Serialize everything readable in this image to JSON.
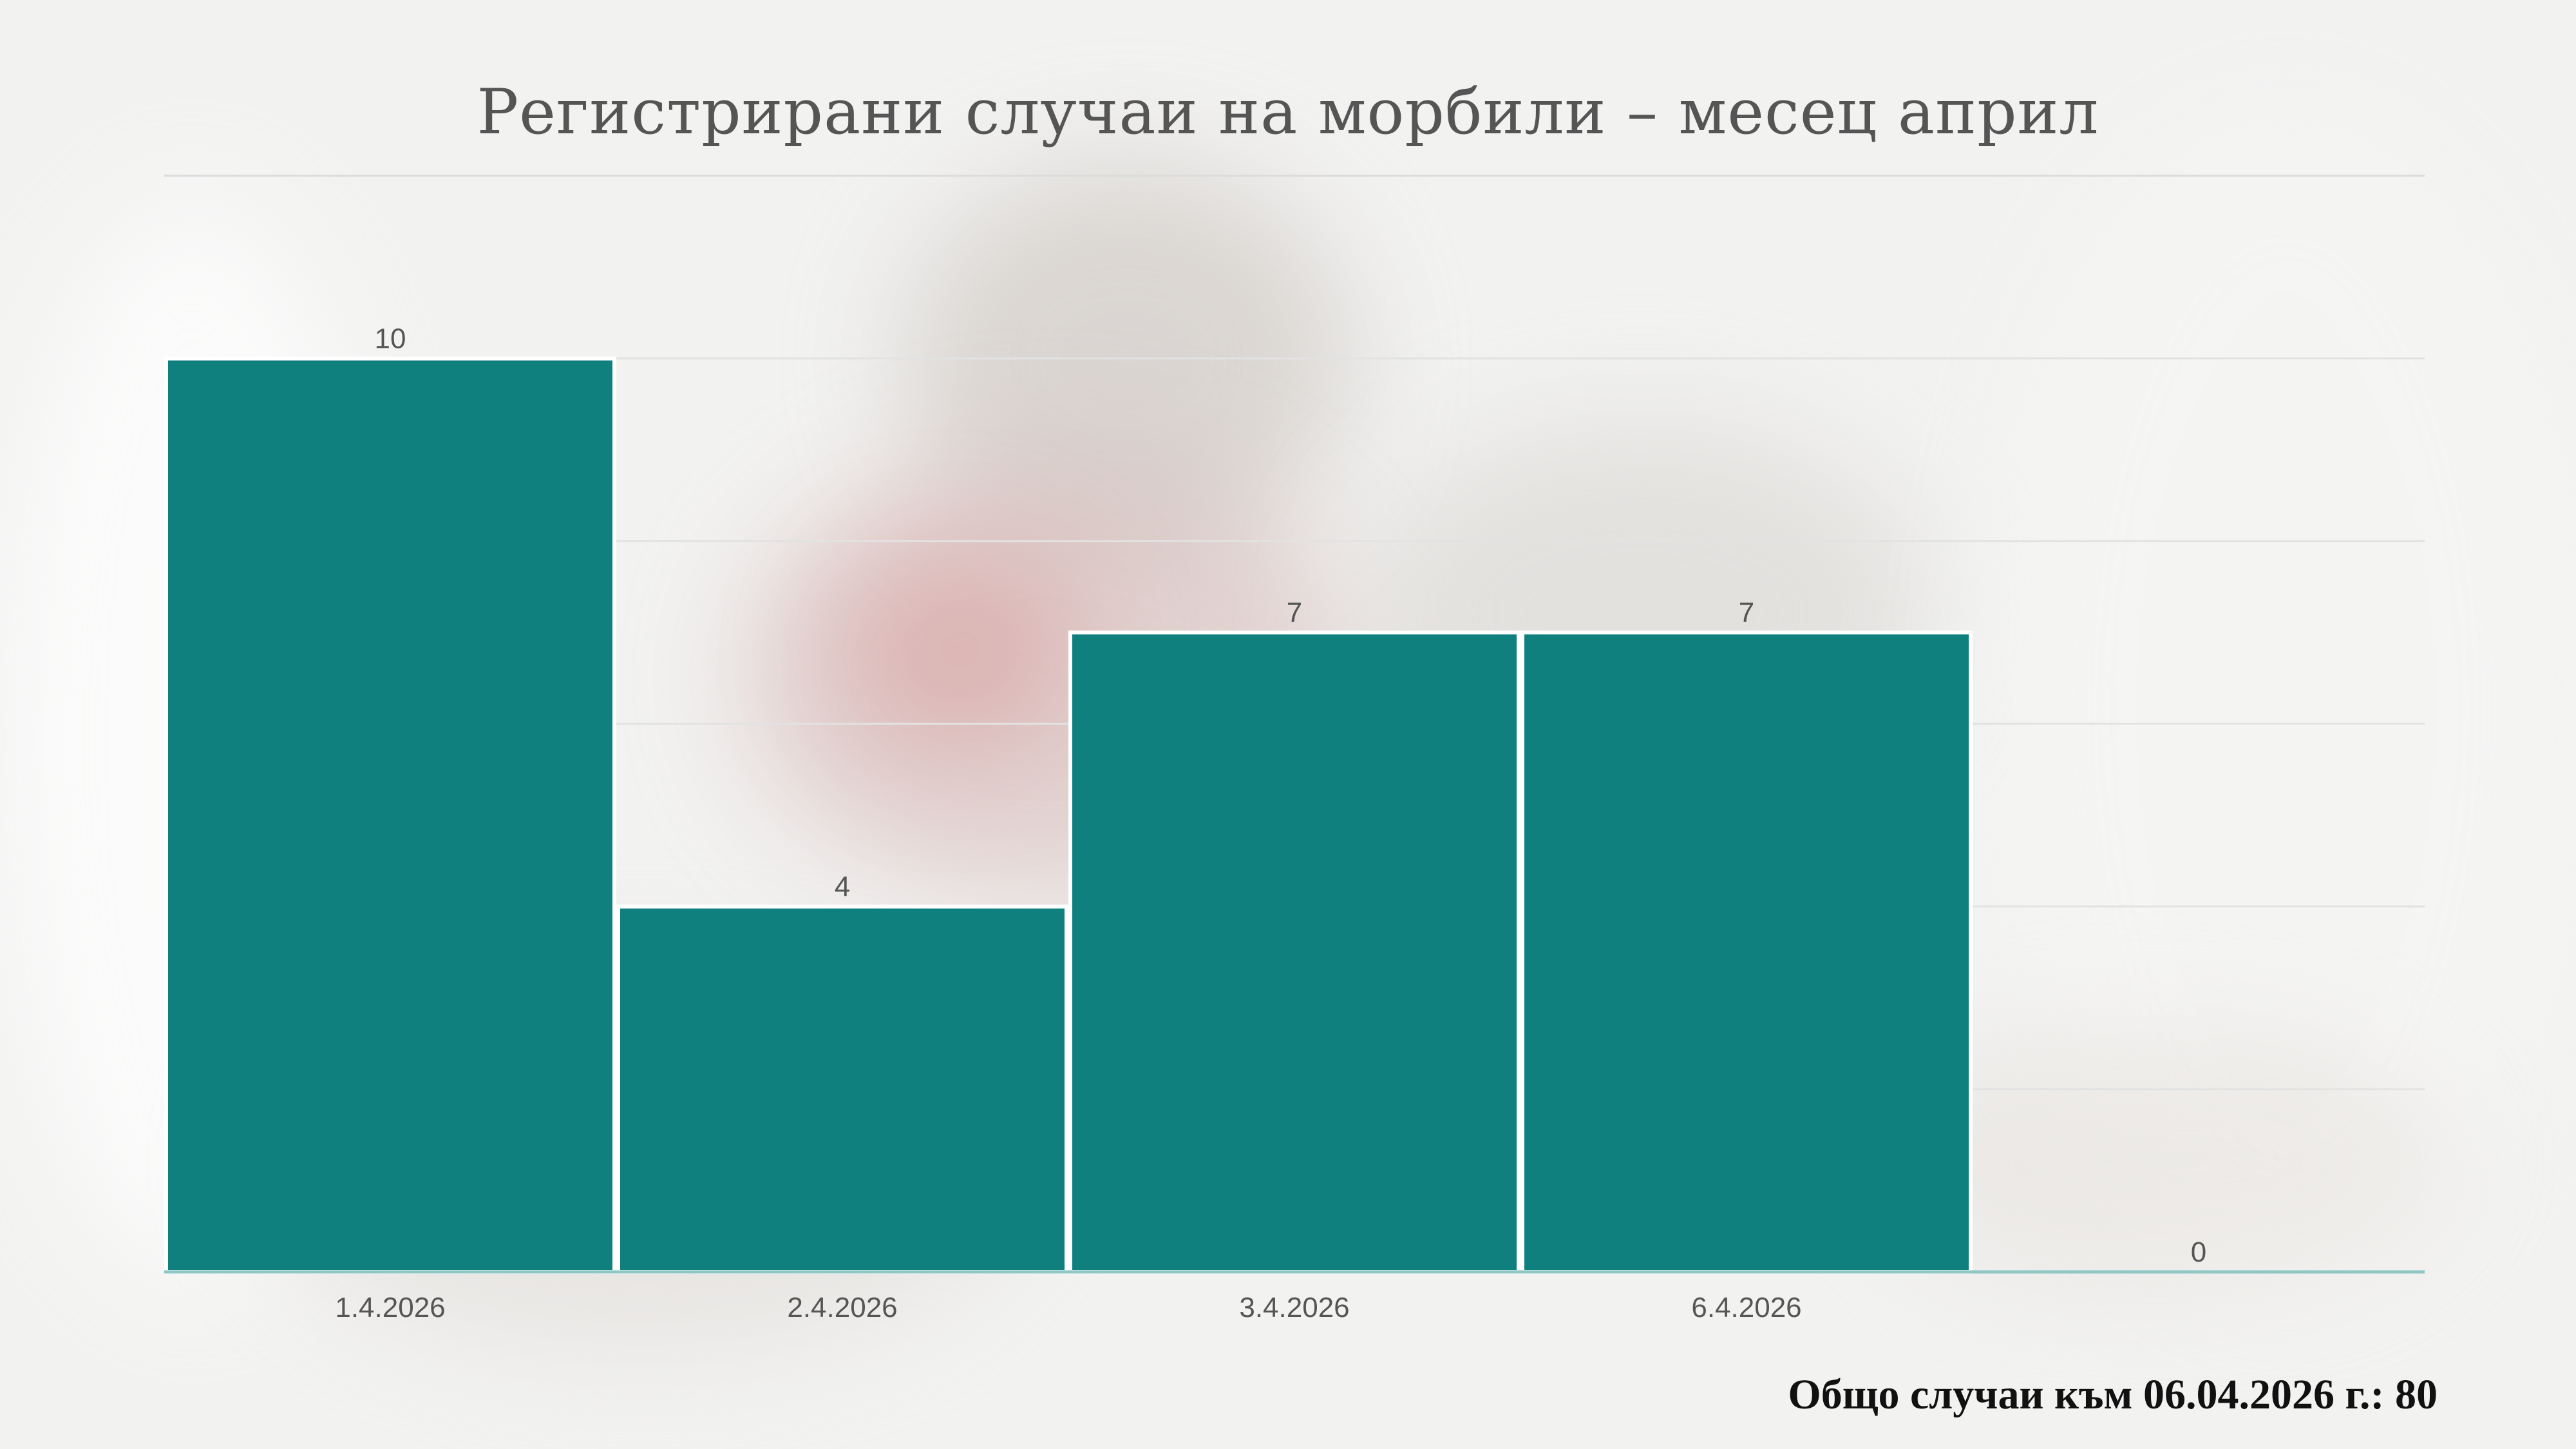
{
  "chart_data": {
    "type": "bar",
    "title": "Регистрирани случаи на морбили – месец април",
    "categories": [
      "1.4.2026",
      "2.4.2026",
      "3.4.2026",
      "6.4.2026",
      ""
    ],
    "values": [
      10,
      4,
      7,
      7,
      0
    ],
    "data_labels": [
      "10",
      "4",
      "7",
      "7",
      "0"
    ],
    "ylim": [
      0,
      12
    ],
    "grid": true,
    "legend": "none",
    "bar_color": "#10807f"
  },
  "footer": {
    "total_text": "Общо случаи към 06.04.2026 г.: 80"
  }
}
